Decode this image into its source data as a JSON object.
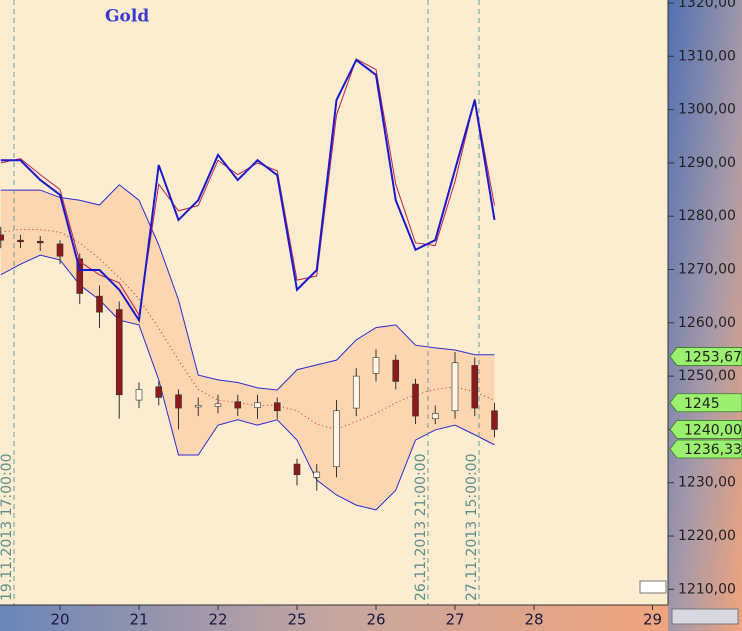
{
  "chart_data": {
    "type": "candlestick",
    "title": "Gold",
    "categories": [
      null,
      null,
      null,
      "20",
      null,
      null,
      null,
      "21",
      null,
      null,
      null,
      "22",
      null,
      null,
      null,
      "25",
      null,
      null,
      null,
      "26",
      null,
      null,
      null,
      "27",
      null,
      null,
      null,
      "28",
      null,
      null,
      null,
      null,
      null,
      "29"
    ],
    "open": [
      1276.5,
      1275.5,
      1275.3,
      1274.8,
      1272.0,
      1265.0,
      1262.5,
      1245.5,
      1248.0,
      1246.5,
      1244.2,
      1244.3,
      1245.2,
      1244.1,
      1245.0,
      1233.5,
      1231.0,
      1233.0,
      1244.0,
      1250.5,
      1253.0,
      1248.5,
      1242.0,
      1243.5,
      1252.0,
      1243.5,
      null,
      null,
      null,
      null,
      null,
      null,
      null,
      null
    ],
    "high": [
      1278.0,
      1276.5,
      1276.3,
      1275.5,
      1273.0,
      1267.0,
      1264.0,
      1248.8,
      1249.0,
      1247.5,
      1246.0,
      1246.5,
      1246.5,
      1246.5,
      1246.0,
      1234.5,
      1233.5,
      1245.5,
      1251.5,
      1255.0,
      1254.0,
      1249.5,
      1244.5,
      1254.5,
      1253.5,
      1245.0,
      null,
      null,
      null,
      null,
      null,
      null,
      null,
      null
    ],
    "low": [
      1274.0,
      1274.0,
      1273.5,
      1271.0,
      1263.5,
      1259.0,
      1242.0,
      1244.0,
      1244.5,
      1240.0,
      1242.5,
      1243.0,
      1242.5,
      1242.0,
      1242.0,
      1229.5,
      1228.5,
      1231.0,
      1242.5,
      1249.0,
      1247.5,
      1241.0,
      1241.0,
      1242.0,
      1242.5,
      1238.5,
      null,
      null,
      null,
      null,
      null,
      null,
      null,
      null
    ],
    "close": [
      1275.5,
      1275.2,
      1275.0,
      1272.5,
      1265.5,
      1262.0,
      1246.5,
      1247.5,
      1246.0,
      1244.0,
      1244.5,
      1244.8,
      1244.0,
      1245.0,
      1243.5,
      1231.5,
      1232.0,
      1243.5,
      1250.0,
      1253.5,
      1249.0,
      1242.5,
      1243.0,
      1252.5,
      1244.0,
      1240.0,
      null,
      null,
      null,
      null,
      null,
      null,
      null,
      null
    ],
    "up_color": "#fff6e8",
    "down_color": "#8b1a1a",
    "upper_band": [
      1284.9,
      1284.9,
      1284.9,
      1283.5,
      1283.0,
      1282.1,
      1285.9,
      1283.0,
      1274.6,
      1264.3,
      1250.2,
      1249.3,
      1248.8,
      1247.8,
      1247.4,
      1251.2,
      1252.1,
      1253.0,
      1256.8,
      1259.1,
      1259.6,
      1255.8,
      1255.3,
      1254.9,
      1254.0,
      1254.0,
      null,
      null,
      null,
      null,
      null,
      null,
      null,
      null
    ],
    "middle_band": [
      1277.0,
      1277.5,
      1277.5,
      1277.0,
      1275.0,
      1272.0,
      1268.5,
      1264.5,
      1259.0,
      1253.0,
      1247.5,
      1245.5,
      1245.0,
      1244.5,
      1244.5,
      1243.5,
      1241.0,
      1240.0,
      1241.5,
      1243.0,
      1245.0,
      1246.5,
      1247.5,
      1248.0,
      1247.0,
      1245.5,
      null,
      null,
      null,
      null,
      null,
      null,
      null,
      null
    ],
    "lower_band": [
      1269.0,
      1271.0,
      1272.7,
      1271.8,
      1267.1,
      1264.3,
      1260.5,
      1259.6,
      1249.3,
      1235.2,
      1235.2,
      1240.8,
      1241.8,
      1240.8,
      1241.8,
      1238.0,
      1230.5,
      1227.7,
      1225.8,
      1224.9,
      1228.6,
      1238.0,
      1239.9,
      1240.8,
      1239.0,
      1237.1,
      null,
      null,
      null,
      null,
      null,
      null,
      null,
      null
    ],
    "band_color": "#2b2bd0",
    "band_fill": "#fcd6b0",
    "middle_color": "#c03030",
    "oscillator": [
      {
        "color": "#c02050",
        "values": [
          1290.0,
          1290.8,
          1287.8,
          1285.0,
          1271.5,
          1269.0,
          1267.5,
          1261.5,
          1286.0,
          1281.0,
          1282.0,
          1290.5,
          1287.8,
          1290.0,
          1288.5,
          1268.0,
          1268.8,
          1299.0,
          1309.5,
          1307.5,
          1286.0,
          1275.0,
          1274.5,
          1286.5,
          1302.0,
          1282.0,
          null,
          null,
          null,
          null,
          null,
          null,
          null,
          null
        ]
      },
      {
        "color": "#1a1acc",
        "values": [
          1290.5,
          1290.5,
          1286.8,
          1284.0,
          1269.9,
          1269.9,
          1266.2,
          1260.5,
          1289.6,
          1279.3,
          1283.0,
          1291.5,
          1286.8,
          1290.5,
          1287.7,
          1266.2,
          1269.9,
          1301.8,
          1309.3,
          1306.5,
          1283.0,
          1273.7,
          1275.5,
          1288.7,
          1301.8,
          1279.3,
          null,
          null,
          null,
          null,
          null,
          null,
          null,
          null
        ]
      }
    ],
    "ylim": [
      1207.06,
      1320.56
    ],
    "yticks": [
      {
        "value": 1210,
        "label": "1210,00"
      },
      {
        "value": 1220,
        "label": "1220,00"
      },
      {
        "value": 1230,
        "label": "1230,00"
      },
      {
        "value": 1240,
        "label": "1240,00"
      },
      {
        "value": 1250,
        "label": "1250,00"
      },
      {
        "value": 1260,
        "label": "1260,00"
      },
      {
        "value": 1270,
        "label": "1270,00"
      },
      {
        "value": 1280,
        "label": "1280,00"
      },
      {
        "value": 1290,
        "label": "1290,00"
      },
      {
        "value": 1300,
        "label": "1300,00"
      },
      {
        "value": 1310,
        "label": "1310,00"
      },
      {
        "value": 1320,
        "label": "1320,00"
      }
    ],
    "price_markers": [
      {
        "value": 1253.67,
        "label": "1253,67"
      },
      1245,
      {
        "value": 1240.0,
        "label": "1240,00"
      },
      {
        "value": 1236.33,
        "label": "1236,33"
      }
    ],
    "marker_color": "#9cf070",
    "time_markers": [
      "19.11.2013 17:00:00",
      "26.11.2013 21:00:00",
      "27.11.2013 15:00:00"
    ]
  }
}
